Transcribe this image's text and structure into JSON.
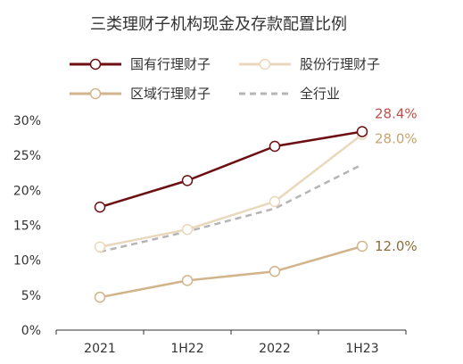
{
  "chart_data": {
    "type": "line",
    "title": "三类理财子机构现金及存款配置比例",
    "categories": [
      "2021",
      "1H22",
      "2022",
      "1H23"
    ],
    "ylim": [
      0,
      30
    ],
    "yticks": [
      0,
      5,
      10,
      15,
      20,
      25,
      30
    ],
    "y_tick_labels": [
      "0%",
      "5%",
      "10%",
      "15%",
      "20%",
      "25%",
      "30%"
    ],
    "grid": false,
    "legend": "top",
    "series": [
      {
        "name": "国有行理财子",
        "values": [
          17.6,
          21.4,
          26.3,
          28.4
        ],
        "color": "#6b0f12",
        "style": "solid",
        "markers": true
      },
      {
        "name": "股份行理财子",
        "values": [
          11.9,
          14.4,
          18.4,
          28.0
        ],
        "color": "#e9d8bc",
        "style": "solid",
        "markers": true
      },
      {
        "name": "区域行理财子",
        "values": [
          4.7,
          7.1,
          8.4,
          12.0
        ],
        "color": "#d2b48c",
        "style": "solid",
        "markers": true
      },
      {
        "name": "全行业",
        "values": [
          11.2,
          14.1,
          17.4,
          23.7
        ],
        "color": "#b5b5b5",
        "style": "dashed",
        "markers": false
      }
    ],
    "data_labels": [
      {
        "text": "28.4%",
        "series": 0,
        "color": "#c0504d"
      },
      {
        "text": "28.0%",
        "series": 1,
        "color": "#c9a46e"
      },
      {
        "text": "12.0%",
        "series": 2,
        "color": "#8a6d3b"
      }
    ]
  }
}
